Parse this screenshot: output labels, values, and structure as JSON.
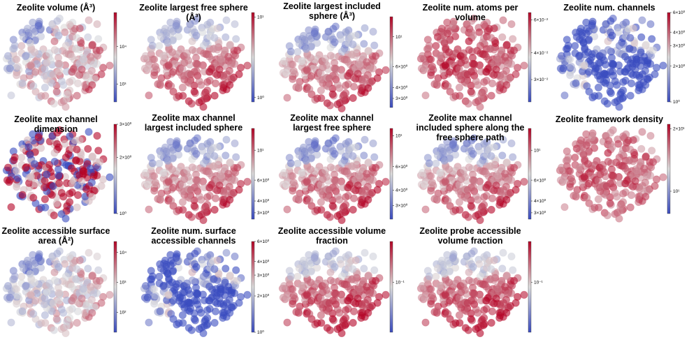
{
  "colormap": {
    "low": "#3b4cc0",
    "mid": "#dddddd",
    "high": "#b40426"
  },
  "chart_data": [
    {
      "type": "scatter",
      "title": "Zeolite volume (Å³)",
      "colorbar": {
        "scale": "log",
        "ticks": [
          "10⁴",
          "10³"
        ],
        "tick_pos": [
          0.38,
          0.8
        ]
      },
      "pattern": 0,
      "bias": 0.0,
      "sat": 0.6
    },
    {
      "type": "scatter",
      "title": "Zeolite largest free sphere (Å³)",
      "colorbar": {
        "scale": "log",
        "ticks": [
          "10¹",
          "10⁰"
        ],
        "tick_pos": [
          0.05,
          0.95
        ]
      },
      "pattern": 1,
      "bias": 0.15,
      "sat": 0.5
    },
    {
      "type": "scatter",
      "title": "Zeolite largest included sphere (Å³)",
      "colorbar": {
        "scale": "log",
        "ticks": [
          "10¹",
          "6×10⁰",
          "4×10⁰",
          "3×10⁰"
        ],
        "tick_pos": [
          0.22,
          0.55,
          0.78,
          0.9
        ]
      },
      "pattern": 1,
      "bias": 0.05,
      "sat": 0.55
    },
    {
      "type": "scatter",
      "title": "Zeolite num. atoms per volume",
      "colorbar": {
        "scale": "log",
        "ticks": [
          "6×10⁻²",
          "4×10⁻²",
          "3×10⁻²"
        ],
        "tick_pos": [
          0.08,
          0.45,
          0.75
        ]
      },
      "pattern": 2,
      "bias": 0.35,
      "sat": 0.55
    },
    {
      "type": "scatter",
      "title": "Zeolite num. channels",
      "colorbar": {
        "scale": "log",
        "ticks": [
          "6×10⁰",
          "4×10⁰",
          "3×10⁰",
          "2×10⁰",
          "10⁰"
        ],
        "tick_pos": [
          0.0,
          0.22,
          0.37,
          0.6,
          1.0
        ]
      },
      "pattern": 3,
      "bias": -0.35,
      "sat": 0.9
    },
    {
      "type": "scatter",
      "title": "Zeolite max channel dimension",
      "colorbar": {
        "scale": "log",
        "ticks": [
          "3×10⁰",
          "2×10⁰",
          "10⁰"
        ],
        "tick_pos": [
          0.0,
          0.37,
          1.0
        ]
      },
      "pattern": 4,
      "bias": 0.0,
      "sat": 1.0
    },
    {
      "type": "scatter",
      "title": "Zeolite max channel largest included sphere",
      "colorbar": {
        "scale": "log",
        "ticks": [
          "10¹",
          "6×10⁰",
          "4×10⁰",
          "3×10⁰"
        ],
        "tick_pos": [
          0.24,
          0.57,
          0.8,
          0.93
        ]
      },
      "pattern": 1,
      "bias": 0.05,
      "sat": 0.55
    },
    {
      "type": "scatter",
      "title": "Zeolite max channel largest free sphere",
      "colorbar": {
        "scale": "log",
        "ticks": [
          "10¹",
          "6×10⁰",
          "4×10⁰",
          "3×10⁰"
        ],
        "tick_pos": [
          0.08,
          0.42,
          0.68,
          0.85
        ]
      },
      "pattern": 1,
      "bias": 0.05,
      "sat": 0.6
    },
    {
      "type": "scatter",
      "title": "Zeolite max channel included sphere along the free sphere path",
      "colorbar": {
        "scale": "log",
        "ticks": [
          "10¹",
          "6×10⁰",
          "4×10⁰",
          "3×10⁰"
        ],
        "tick_pos": [
          0.24,
          0.57,
          0.8,
          0.93
        ]
      },
      "pattern": 1,
      "bias": 0.05,
      "sat": 0.55
    },
    {
      "type": "scatter",
      "title": "Zeolite framework density",
      "colorbar": {
        "scale": "log",
        "ticks": [
          "2×10¹",
          "10¹"
        ],
        "tick_pos": [
          0.05,
          0.75
        ]
      },
      "pattern": 2,
      "bias": 0.3,
      "sat": 0.5
    },
    {
      "type": "scatter",
      "title": "Zeolite accessible surface area (Å²)",
      "colorbar": {
        "scale": "log",
        "ticks": [
          "10⁴",
          "10³",
          "10²"
        ],
        "tick_pos": [
          0.12,
          0.45,
          0.78
        ]
      },
      "pattern": 0,
      "bias": -0.1,
      "sat": 0.5
    },
    {
      "type": "scatter",
      "title": "Zeolite num. surface accessible channels",
      "colorbar": {
        "scale": "log",
        "ticks": [
          "6×10⁰",
          "4×10⁰",
          "3×10⁰",
          "2×10⁰",
          "10⁰"
        ],
        "tick_pos": [
          0.0,
          0.22,
          0.37,
          0.6,
          1.0
        ]
      },
      "pattern": 3,
      "bias": -0.3,
      "sat": 0.9
    },
    {
      "type": "scatter",
      "title": "Zeolite accessible volume fraction",
      "colorbar": {
        "scale": "log",
        "ticks": [
          "10⁻¹"
        ],
        "tick_pos": [
          0.45
        ]
      },
      "pattern": 1,
      "bias": 0.25,
      "sat": 0.5
    },
    {
      "type": "scatter",
      "title": "Zeolite probe accessible volume fraction",
      "colorbar": {
        "scale": "log",
        "ticks": [
          "10⁻¹"
        ],
        "tick_pos": [
          0.45
        ]
      },
      "pattern": 1,
      "bias": 0.25,
      "sat": 0.5
    }
  ]
}
